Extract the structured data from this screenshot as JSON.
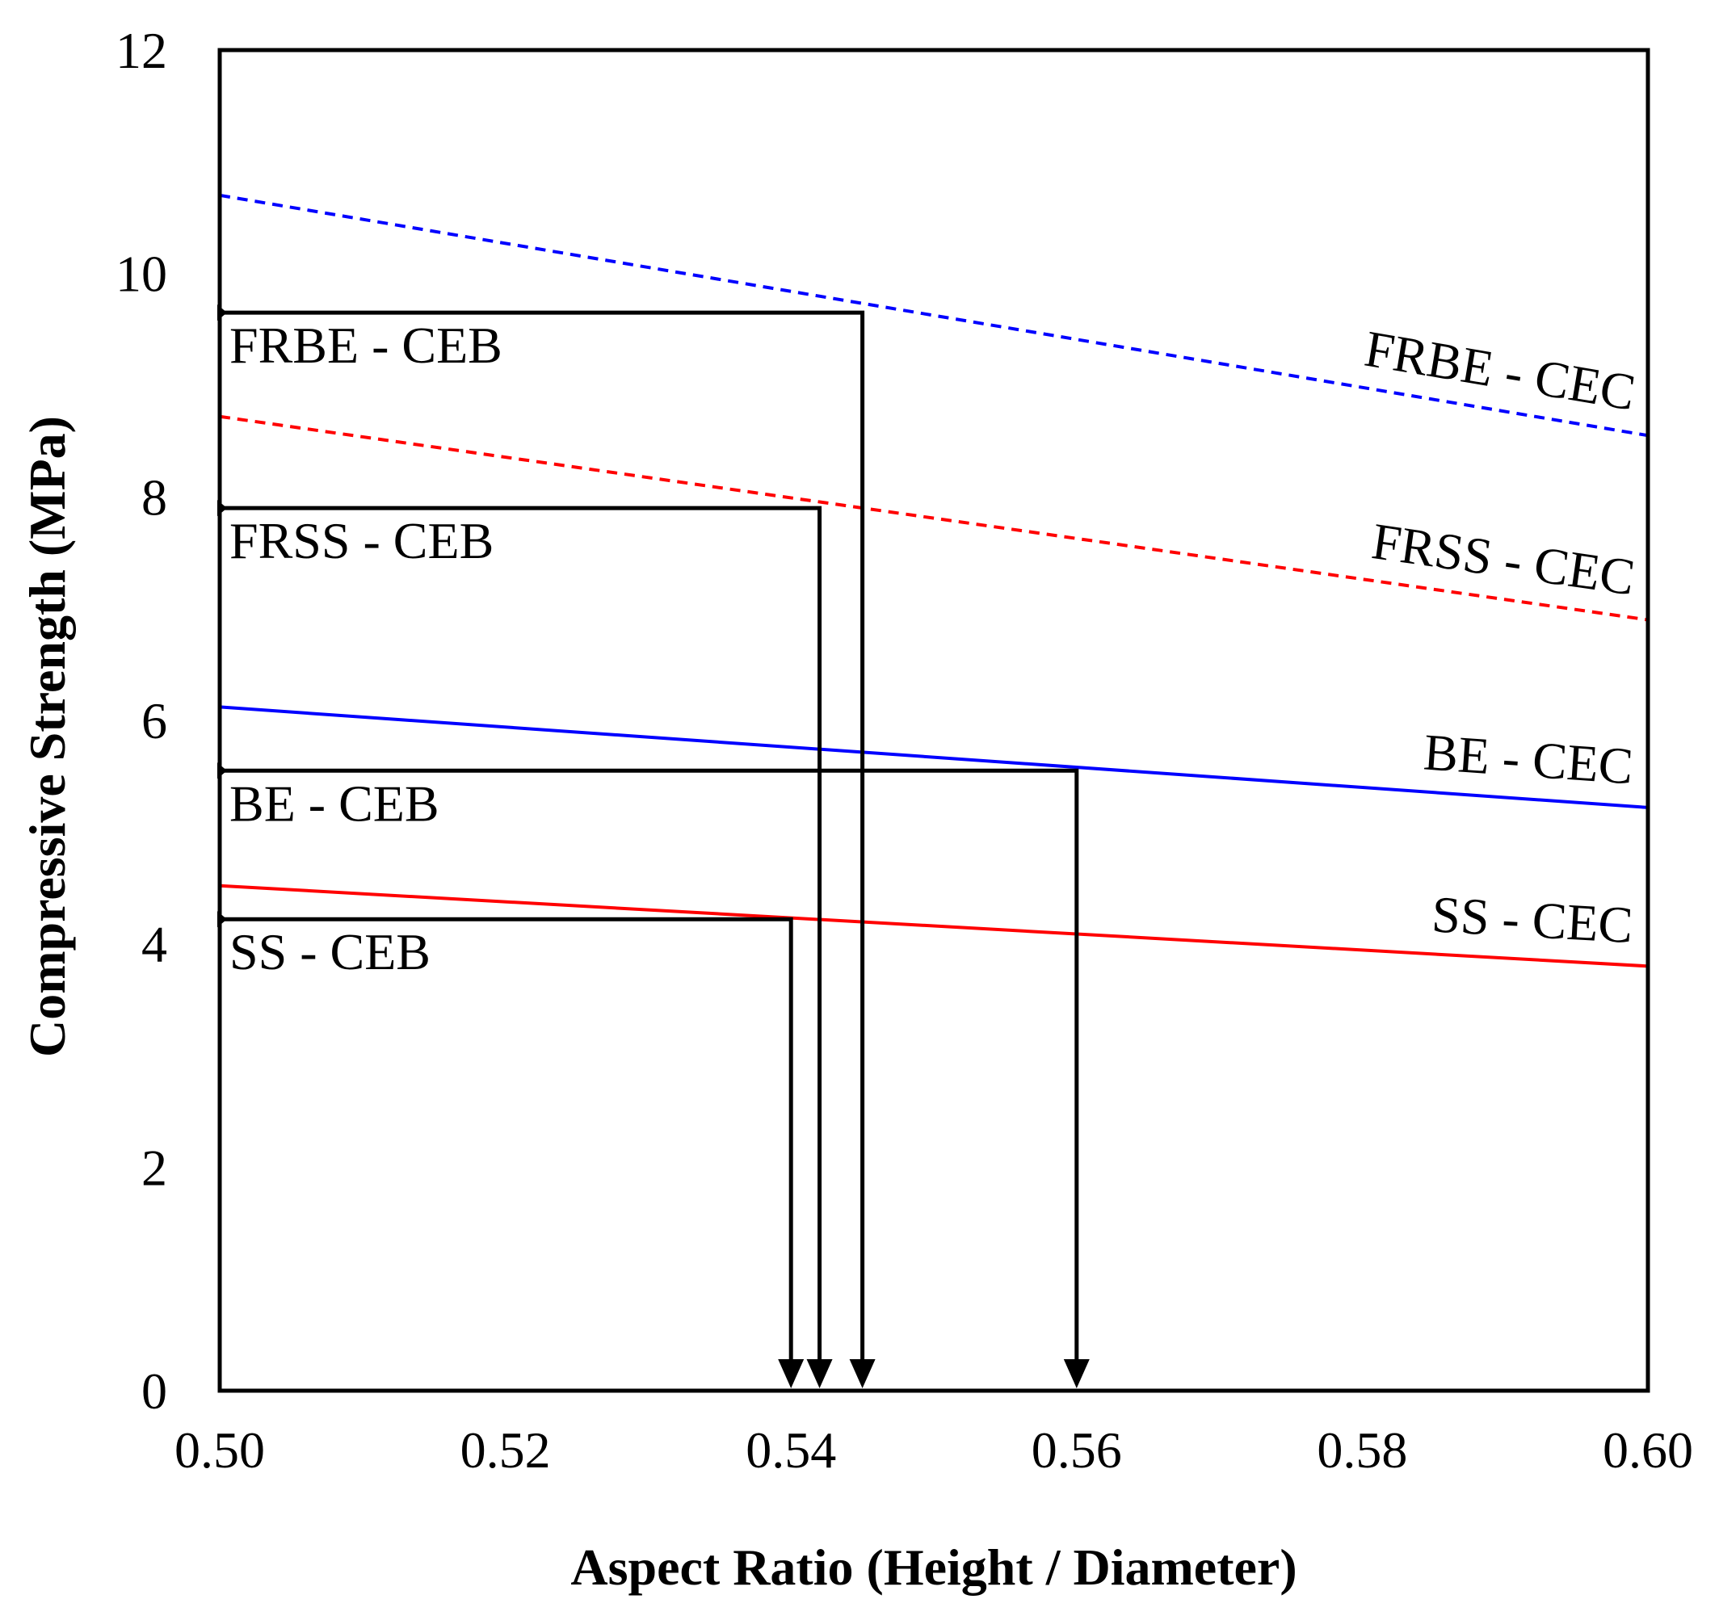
{
  "chart_data": {
    "type": "line",
    "xlabel": "Aspect Ratio (Height / Diameter)",
    "ylabel": "Compressive Strength (MPa)",
    "xlim": [
      0.5,
      0.6
    ],
    "ylim": [
      0,
      12
    ],
    "x_ticks": [
      "0.50",
      "0.52",
      "0.54",
      "0.56",
      "0.58",
      "0.60"
    ],
    "y_ticks": [
      "0",
      "2",
      "4",
      "6",
      "8",
      "10",
      "12"
    ],
    "grid": false,
    "series": [
      {
        "name": "FRBE - CEC",
        "color": "#0000ff",
        "dash": "dashed",
        "x": [
          0.5,
          0.6
        ],
        "y": [
          10.7,
          8.55
        ]
      },
      {
        "name": "FRSS - CEC",
        "color": "#ff0000",
        "dash": "dashed",
        "x": [
          0.5,
          0.6
        ],
        "y": [
          8.72,
          6.9
        ]
      },
      {
        "name": "BE - CEC",
        "color": "#0000ff",
        "dash": "solid",
        "x": [
          0.5,
          0.6
        ],
        "y": [
          6.12,
          5.22
        ]
      },
      {
        "name": "SS - CEC",
        "color": "#ff0000",
        "dash": "solid",
        "x": [
          0.5,
          0.6
        ],
        "y": [
          4.52,
          3.8
        ]
      }
    ],
    "reference_lines": [
      {
        "name": "FRBE - CEB",
        "strength": 9.65,
        "aspect_ratio": 0.545
      },
      {
        "name": "FRSS - CEB",
        "strength": 7.9,
        "aspect_ratio": 0.542
      },
      {
        "name": "BE - CEB",
        "strength": 5.55,
        "aspect_ratio": 0.56
      },
      {
        "name": "SS - CEB",
        "strength": 4.22,
        "aspect_ratio": 0.54
      }
    ]
  }
}
